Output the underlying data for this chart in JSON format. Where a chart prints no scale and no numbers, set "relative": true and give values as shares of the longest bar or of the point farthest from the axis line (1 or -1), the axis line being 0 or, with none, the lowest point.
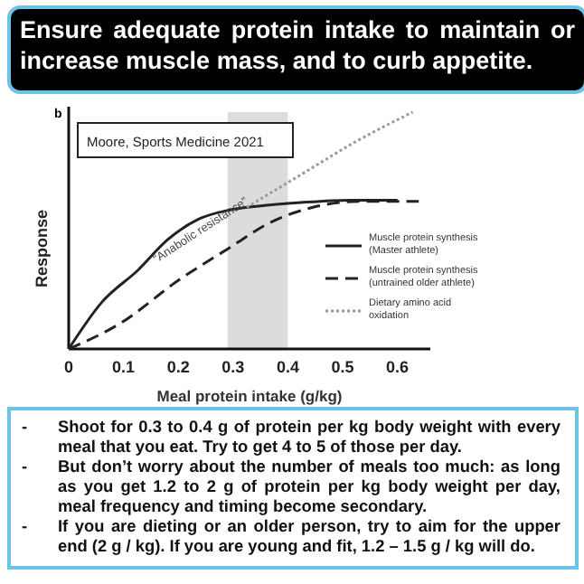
{
  "chart_data": {
    "type": "line",
    "title": "Ensure adequate protein intake to maintain or increase muscle mass, and to curb appetite.",
    "xlabel": "Meal protein intake (g/kg)",
    "ylabel": "Response",
    "relative": true,
    "xlim": [
      0,
      0.66
    ],
    "xticks": [
      0,
      0.1,
      0.2,
      0.3,
      0.4,
      0.5,
      0.6
    ],
    "legend": "right",
    "bands": [
      {
        "axis": "x",
        "from": 0.29,
        "to": 0.4,
        "color": "#dcdcdc"
      }
    ],
    "annotations": [
      "b",
      "Moore,  Sports Medicine 2021",
      "“Anabolic resistance”",
      "- Shoot for 0.3 to 0.4 g of protein per kg body weight with every meal that you eat. Try to get 4 to 5 of those per day.",
      "- But don’t worry about the number of meals too much: as long as you get 1.2 to 2 g of protein per kg body weight per day, meal frequency and timing become secondary.",
      "- If you are dieting or an older person, try to aim for the upper end (2 g / kg). If you are young and fit, 1.2 – 1.5 g / kg will do."
    ],
    "series": [
      {
        "name": "Muscle protein synthesis (Master athlete)",
        "color": "#222222",
        "line_style": "solid",
        "x": [
          0,
          0.06,
          0.127,
          0.18,
          0.237,
          0.29,
          0.347,
          0.424,
          0.512,
          0.6
        ],
        "values": [
          0,
          0.196,
          0.334,
          0.46,
          0.548,
          0.585,
          0.603,
          0.618,
          0.628,
          0.628
        ]
      },
      {
        "name": "Muscle protein synthesis (untrained older athlete)",
        "color": "#222222",
        "line_style": "dashed",
        "x": [
          0,
          0.094,
          0.204,
          0.29,
          0.369,
          0.446,
          0.534,
          0.639
        ],
        "values": [
          0,
          0.108,
          0.296,
          0.422,
          0.535,
          0.598,
          0.623,
          0.623
        ]
      },
      {
        "name": "Dietary amino acid oxidation",
        "color": "#999999",
        "line_style": "dotted",
        "x": [
          0.325,
          0.424,
          0.523,
          0.628
        ],
        "values": [
          0.598,
          0.736,
          0.874,
          1
        ]
      }
    ]
  }
}
